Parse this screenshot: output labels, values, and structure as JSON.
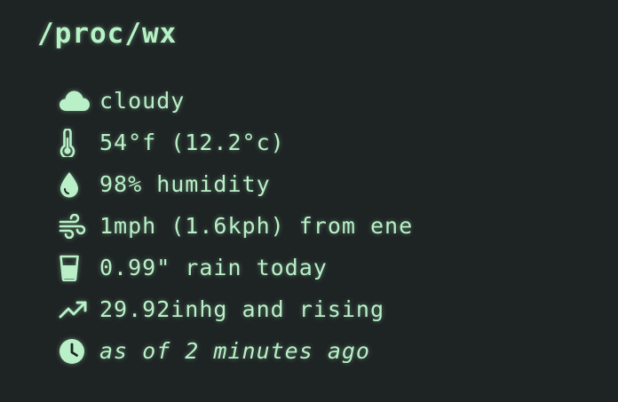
{
  "title": "/proc/wx",
  "accent_color": "#b9f0c8",
  "background_color": "#1e2324",
  "rows": [
    {
      "icon": "cloud-icon",
      "text": "cloudy"
    },
    {
      "icon": "thermometer-icon",
      "text": "54°f (12.2°c)"
    },
    {
      "icon": "droplet-icon",
      "text": "98% humidity"
    },
    {
      "icon": "wind-icon",
      "text": "1mph (1.6kph) from ene"
    },
    {
      "icon": "glass-icon",
      "text": "0.99\" rain today"
    },
    {
      "icon": "trending-up-icon",
      "text": "29.92inhg and rising"
    },
    {
      "icon": "clock-icon",
      "text": "as of 2 minutes ago"
    }
  ]
}
